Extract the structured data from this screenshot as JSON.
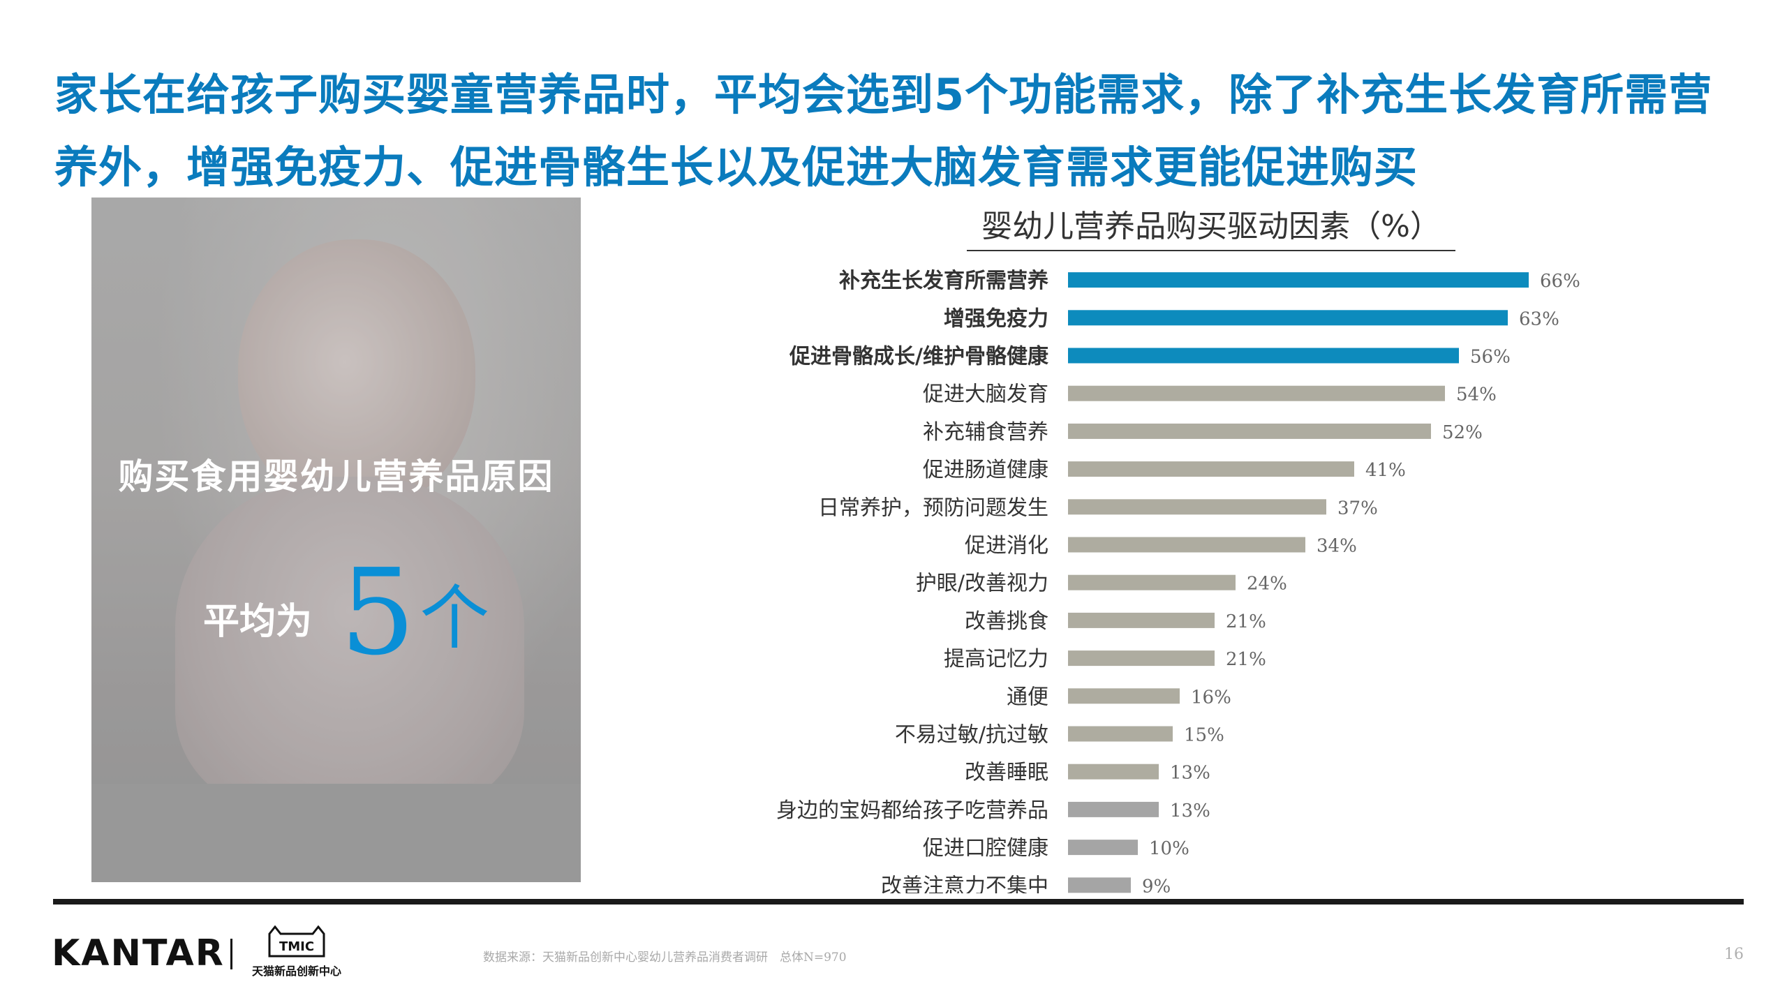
{
  "headline": "家长在给孩子购买婴童营养品时，平均会选到5个功能需求，除了补充生长发育所需营养外，增强免疫力、促进骨骼生长以及促进大脑发育需求更能促进购买",
  "panel": {
    "title": "购买食用婴幼儿营养品原因",
    "avg_label": "平均为",
    "avg_value": "5",
    "avg_unit": "个"
  },
  "colors": {
    "headline": "#0a7bbd",
    "bar_highlight": "#0d8bbd",
    "bar_normal": "#aeaca0",
    "bar_light": "#a5a5a5"
  },
  "chart_data": {
    "type": "bar",
    "orientation": "horizontal",
    "title": "婴幼儿营养品购买驱动因素（%）",
    "categories": [
      "补充生长发育所需营养",
      "增强免疫力",
      "促进骨骼成长/维护骨骼健康",
      "促进大脑发育",
      "补充辅食营养",
      "促进肠道健康",
      "日常养护，预防问题发生",
      "促进消化",
      "护眼/改善视力",
      "改善挑食",
      "提高记忆力",
      "通便",
      "不易过敏/抗过敏",
      "改善睡眠",
      "身边的宝妈都给孩子吃营养品",
      "促进口腔健康",
      "改善注意力不集中"
    ],
    "values": [
      66,
      63,
      56,
      54,
      52,
      41,
      37,
      34,
      24,
      21,
      21,
      16,
      15,
      13,
      13,
      10,
      9
    ],
    "value_labels": [
      "66%",
      "63%",
      "56%",
      "54%",
      "52%",
      "41%",
      "37%",
      "34%",
      "24%",
      "21%",
      "21%",
      "16%",
      "15%",
      "13%",
      "13%",
      "10%",
      "9%"
    ],
    "highlight": [
      true,
      true,
      true,
      false,
      false,
      false,
      false,
      false,
      false,
      false,
      false,
      false,
      false,
      false,
      false,
      false,
      false
    ],
    "light": [
      false,
      false,
      false,
      false,
      false,
      false,
      false,
      false,
      false,
      false,
      false,
      false,
      false,
      false,
      true,
      true,
      true
    ],
    "xlim": [
      0,
      100
    ],
    "grid": false,
    "legend": "none"
  },
  "footer": {
    "brand": "KANTAR",
    "partner": "TMIC",
    "partner_sub": "天猫新品创新中心",
    "source": "数据来源：天猫新品创新中心婴幼儿营养品消费者调研　总体N=970",
    "page": "16"
  }
}
